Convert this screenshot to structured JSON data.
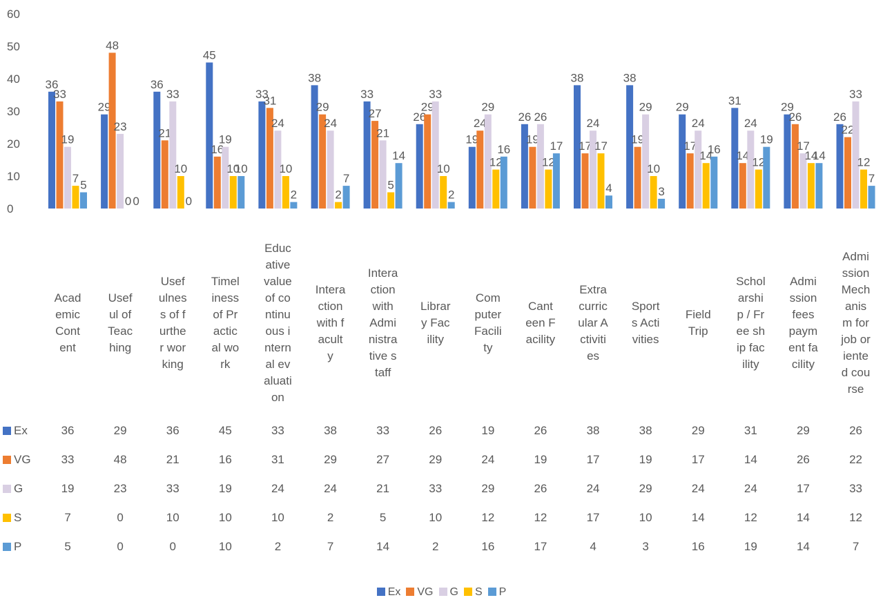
{
  "chart_data": {
    "type": "bar",
    "title": "",
    "xlabel": "",
    "ylabel": "",
    "ylim": [
      0,
      60
    ],
    "yticks": [
      "0",
      "10",
      "20",
      "30",
      "40",
      "50",
      "60"
    ],
    "grid": false,
    "legend_position": "bottom",
    "data_table": true,
    "categories": [
      "Academic Content",
      "Useful of Teaching",
      "Usefulness of further working",
      "Timeliness of Practical work",
      "Educative value of continuous internal evaluation",
      "Interaction with faculty",
      "Interaction with Administrative staff",
      "Library Facility",
      "Computer Facility",
      "Canteen Facility",
      "Extracurricular Activities",
      "Sports Activities",
      "Field Trip",
      "Scholarship / Free ship facility",
      "Admission fees payment facility",
      "Admission Mechanism for job oriented course"
    ],
    "series": [
      {
        "name": "Ex",
        "color": "#4472C4",
        "values": [
          36,
          29,
          36,
          45,
          33,
          38,
          33,
          26,
          19,
          26,
          38,
          38,
          29,
          31,
          29,
          26
        ]
      },
      {
        "name": "VG",
        "color": "#ED7D31",
        "values": [
          33,
          48,
          21,
          16,
          31,
          29,
          27,
          29,
          24,
          19,
          17,
          19,
          17,
          14,
          26,
          22
        ]
      },
      {
        "name": "G",
        "color": "#D9CFE3",
        "values": [
          19,
          23,
          33,
          19,
          24,
          24,
          21,
          33,
          29,
          26,
          24,
          29,
          24,
          24,
          17,
          33
        ]
      },
      {
        "name": "S",
        "color": "#FFC000",
        "values": [
          7,
          0,
          10,
          10,
          10,
          2,
          5,
          10,
          12,
          12,
          17,
          10,
          14,
          12,
          14,
          12
        ]
      },
      {
        "name": "P",
        "color": "#5B9BD5",
        "values": [
          5,
          0,
          0,
          10,
          2,
          7,
          14,
          2,
          16,
          17,
          4,
          3,
          16,
          19,
          14,
          7
        ]
      }
    ]
  }
}
